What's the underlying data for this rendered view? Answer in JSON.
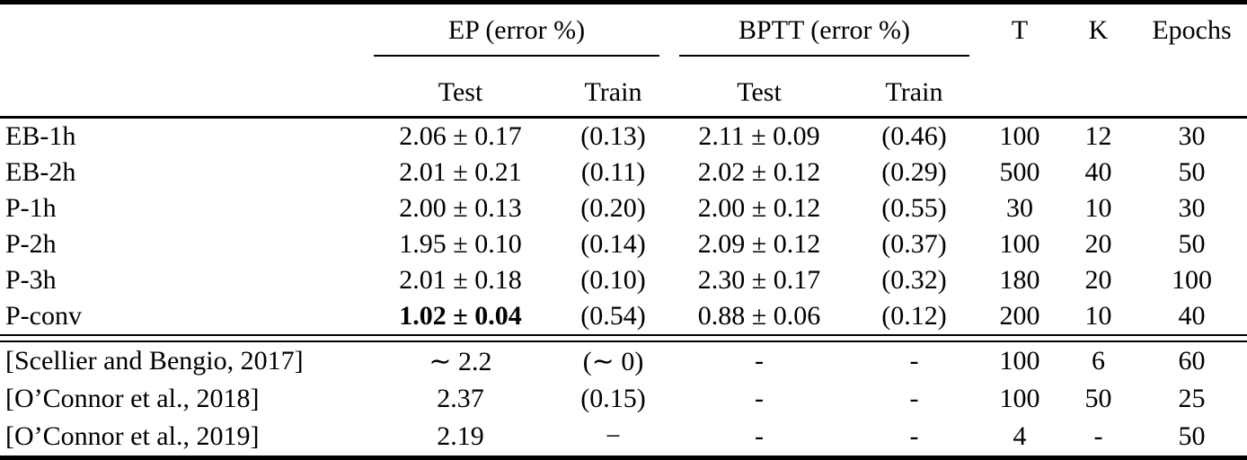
{
  "colors": {
    "text": "#000000",
    "background": "#ffffff",
    "rule": "#000000"
  },
  "table": {
    "group_headers": [
      {
        "label": "EP (error %)"
      },
      {
        "label": "BPTT (error %)"
      }
    ],
    "scalar_headers": {
      "t": "T",
      "k": "K",
      "epochs": "Epochs"
    },
    "sub_headers": {
      "ep_test": "Test",
      "ep_train": "Train",
      "bptt_test": "Test",
      "bptt_train": "Train"
    },
    "rows": [
      {
        "label": "EB-1h",
        "ep_test": "2.06 ± 0.17",
        "ep_train": "(0.13)",
        "bptt_test": "2.11 ± 0.09",
        "bptt_train": "(0.46)",
        "t": "100",
        "k": "12",
        "epochs": "30",
        "bold_ep_test": false
      },
      {
        "label": "EB-2h",
        "ep_test": "2.01 ± 0.21",
        "ep_train": "(0.11)",
        "bptt_test": "2.02 ± 0.12",
        "bptt_train": "(0.29)",
        "t": "500",
        "k": "40",
        "epochs": "50",
        "bold_ep_test": false
      },
      {
        "label": "P-1h",
        "ep_test": "2.00 ± 0.13",
        "ep_train": "(0.20)",
        "bptt_test": "2.00 ± 0.12",
        "bptt_train": "(0.55)",
        "t": "30",
        "k": "10",
        "epochs": "30",
        "bold_ep_test": false
      },
      {
        "label": "P-2h",
        "ep_test": "1.95 ± 0.10",
        "ep_train": "(0.14)",
        "bptt_test": "2.09 ± 0.12",
        "bptt_train": "(0.37)",
        "t": "100",
        "k": "20",
        "epochs": "50",
        "bold_ep_test": false
      },
      {
        "label": "P-3h",
        "ep_test": "2.01 ± 0.18",
        "ep_train": "(0.10)",
        "bptt_test": "2.30 ± 0.17",
        "bptt_train": "(0.32)",
        "t": "180",
        "k": "20",
        "epochs": "100",
        "bold_ep_test": false
      },
      {
        "label": "P-conv",
        "ep_test": "1.02 ± 0.04",
        "ep_train": "(0.54)",
        "bptt_test": "0.88 ± 0.06",
        "bptt_train": "(0.12)",
        "t": "200",
        "k": "10",
        "epochs": "40",
        "bold_ep_test": true
      }
    ],
    "ref_rows": [
      {
        "label": "[Scellier and Bengio, 2017]",
        "ep_test": "∼ 2.2",
        "ep_train": "(∼ 0)",
        "bptt_test": "-",
        "bptt_train": "-",
        "t": "100",
        "k": "6",
        "epochs": "60",
        "bold_ep_test": false
      },
      {
        "label": "[O’Connor et al., 2018]",
        "ep_test": "2.37",
        "ep_train": "(0.15)",
        "bptt_test": "-",
        "bptt_train": "-",
        "t": "100",
        "k": "50",
        "epochs": "25",
        "bold_ep_test": false
      },
      {
        "label": "[O’Connor et al., 2019]",
        "ep_test": "2.19",
        "ep_train": "−",
        "bptt_test": "-",
        "bptt_train": "-",
        "t": "4",
        "k": "-",
        "epochs": "50",
        "bold_ep_test": false
      }
    ]
  }
}
